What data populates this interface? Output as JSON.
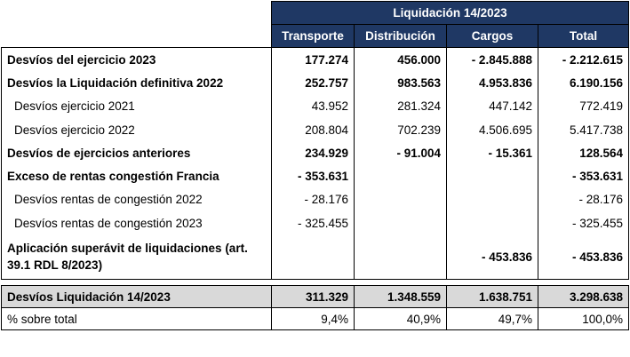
{
  "table": {
    "group_header": "Liquidación 14/2023",
    "columns": [
      "Transporte",
      "Distribución",
      "Cargos",
      "Total"
    ],
    "rows": [
      {
        "label": "Desvíos del ejercicio 2023",
        "bold": true,
        "values": [
          "177.274",
          "456.000",
          "- 2.845.888",
          "- 2.212.615"
        ]
      },
      {
        "label": "Desvíos la Liquidación definitiva 2022",
        "bold": true,
        "values": [
          "252.757",
          "983.563",
          "4.953.836",
          "6.190.156"
        ]
      },
      {
        "label": "Desvíos ejercicio 2021",
        "bold": false,
        "values": [
          "43.952",
          "281.324",
          "447.142",
          "772.419"
        ]
      },
      {
        "label": "Desvíos ejercicio 2022",
        "bold": false,
        "values": [
          "208.804",
          "702.239",
          "4.506.695",
          "5.417.738"
        ]
      },
      {
        "label": "Desvíos de ejercicios anteriores",
        "bold": true,
        "values": [
          "234.929",
          "- 91.004",
          "- 15.361",
          "128.564"
        ]
      },
      {
        "label": "Exceso de rentas congestión Francia",
        "bold": true,
        "values": [
          "- 353.631",
          "",
          "",
          "- 353.631"
        ]
      },
      {
        "label": "Desvíos rentas de congestión 2022",
        "bold": false,
        "values": [
          "- 28.176",
          "",
          "",
          "- 28.176"
        ]
      },
      {
        "label": "Desvíos rentas de congestión 2023",
        "bold": false,
        "values": [
          "- 325.455",
          "",
          "",
          "- 325.455"
        ]
      },
      {
        "label": "Aplicación superávit de liquidaciones (art. 39.1 RDL 8/2023)",
        "bold": true,
        "values": [
          "",
          "",
          "- 453.836",
          "- 453.836"
        ]
      }
    ],
    "total_row": {
      "label": "Desvíos Liquidación 14/2023",
      "values": [
        "311.329",
        "1.348.559",
        "1.638.751",
        "3.298.638"
      ]
    },
    "percent_row": {
      "label": "% sobre total",
      "values": [
        "9,4%",
        "40,9%",
        "49,7%",
        "100,0%"
      ]
    }
  },
  "colors": {
    "header_background": "#1f3864",
    "header_text": "#ffffff",
    "total_row_background": "#d9d9d9"
  }
}
